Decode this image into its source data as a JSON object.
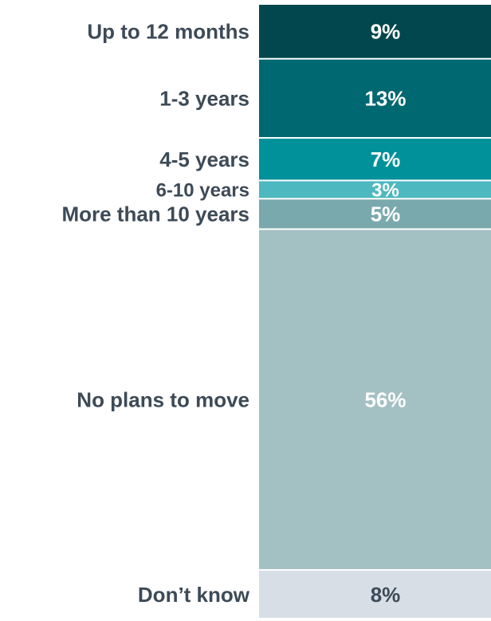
{
  "chart_data": {
    "type": "bar",
    "title": "",
    "xlabel": "",
    "ylabel": "",
    "stacked": true,
    "orientation": "vertical-stack",
    "categories": [
      "Up to 12 months",
      "1-3 years",
      "4-5 years",
      "6-10 years",
      "More than 10 years",
      "No plans to move",
      "Don’t know"
    ],
    "values": [
      9,
      13,
      7,
      3,
      5,
      56,
      8
    ],
    "value_labels": [
      "9%",
      "13%",
      "7%",
      "3%",
      "5%",
      "56%",
      "8%"
    ],
    "unit": "%",
    "colors": [
      "#02474d",
      "#006870",
      "#00919a",
      "#4db8bf",
      "#79a9ad",
      "#a3c0c3",
      "#d7dee5"
    ],
    "label_colors": [
      "#ffffff",
      "#ffffff",
      "#ffffff",
      "#ffffff",
      "#ffffff",
      "#ffffff",
      "#3d4a57"
    ],
    "category_label_color": "#3d4a57",
    "grid": false,
    "legend": "none"
  }
}
